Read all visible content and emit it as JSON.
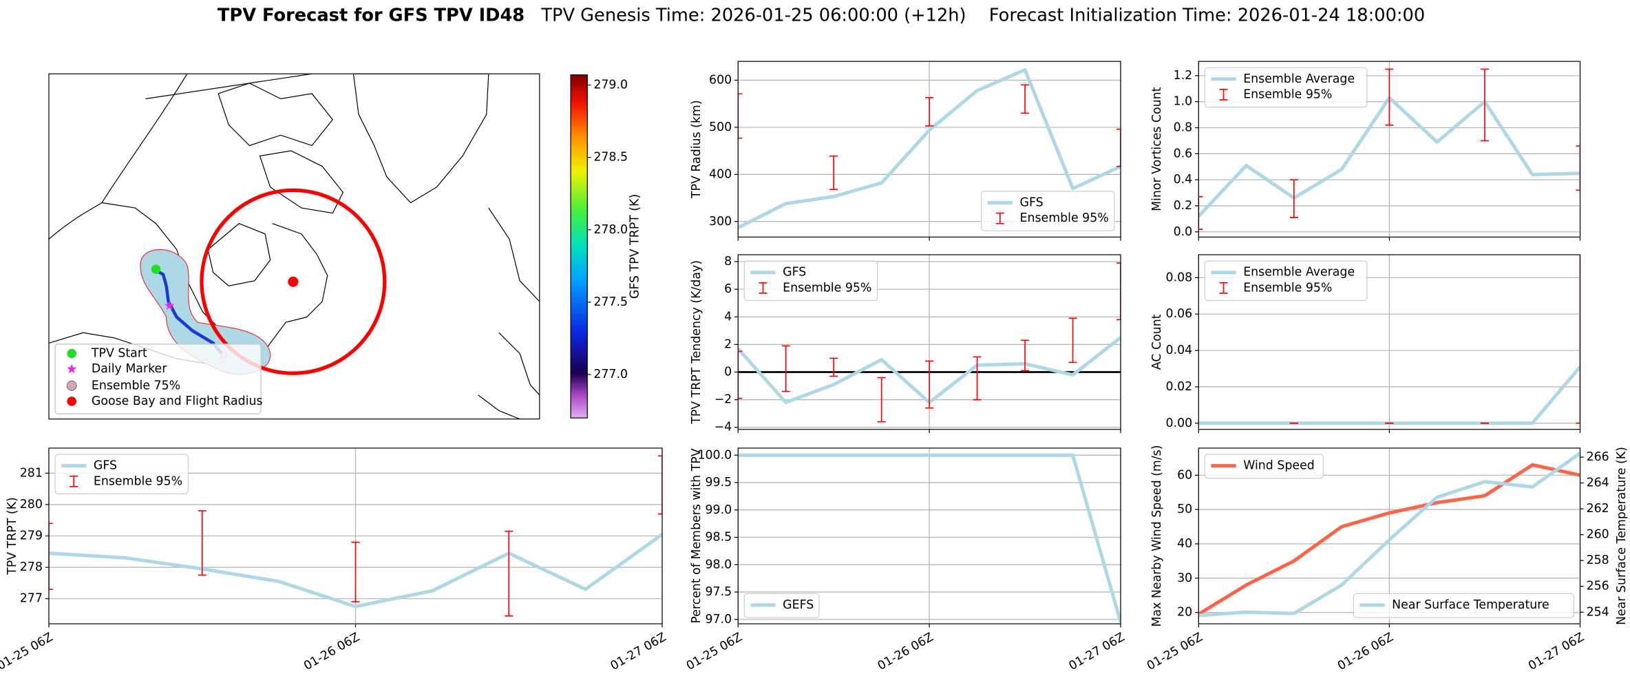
{
  "title": {
    "main": "TPV Forecast for GFS TPV ID48",
    "genesis": "TPV Genesis Time: 2026-01-25 06:00:00 (+12h)",
    "init": "Forecast Initialization Time: 2026-01-24 18:00:00"
  },
  "chart_data": [
    {
      "type": "map",
      "legend": [
        "TPV Start",
        "Daily Marker",
        "Ensemble 75%",
        "Goose Bay and Flight Radius"
      ],
      "colorbar": {
        "label": "GFS TPV TRPT (K)",
        "lim": [
          276.7,
          279.07
        ],
        "ticks": [
          {
            "value": 277,
            "label": "277.0"
          },
          277.5,
          {
            "value": 278,
            "label": "278.0"
          },
          278.5,
          {
            "value": 279,
            "label": "279.0"
          }
        ]
      }
    },
    {
      "type": "line",
      "ylabel": "TPV Radius (km)",
      "ylim": [
        267,
        640
      ],
      "yticks": [
        300,
        400,
        500,
        600
      ],
      "grid": true,
      "legend": "lower right",
      "series": [
        {
          "name": "GFS",
          "color": "#add8e6",
          "values": [
            287,
            338,
            353,
            382,
            494,
            578,
            622,
            370,
            417
          ]
        }
      ],
      "error_bars": {
        "name": "Ensemble 95%",
        "color": "red",
        "low": [
          477,
          null,
          368,
          null,
          503,
          null,
          530,
          null,
          417
        ],
        "high": [
          571,
          null,
          439,
          null,
          563,
          null,
          590,
          null,
          496
        ]
      }
    },
    {
      "type": "line",
      "ylabel": "Minor Vortices Count",
      "ylim": [
        -0.04,
        1.31
      ],
      "yticks": [
        {
          "value": 0,
          "label": "0.0"
        },
        0.2,
        0.4,
        0.6,
        0.8,
        {
          "value": 1,
          "label": "1.0"
        },
        1.2
      ],
      "grid": true,
      "legend": "upper left",
      "series": [
        {
          "name": "Ensemble Average",
          "color": "#add8e6",
          "values": [
            0.12,
            0.51,
            0.26,
            0.48,
            1.03,
            0.69,
            1.0,
            0.44,
            0.45
          ]
        }
      ],
      "error_bars": {
        "name": "Ensemble 95%",
        "color": "red",
        "low": [
          0.02,
          null,
          0.11,
          null,
          0.82,
          null,
          0.7,
          null,
          0.32
        ],
        "high": [
          0.27,
          null,
          0.4,
          null,
          1.25,
          null,
          1.25,
          null,
          0.66
        ]
      }
    },
    {
      "type": "line",
      "ylabel": "TPV TRPT Tendency (K/day)",
      "ylim": [
        -4.15,
        8.5
      ],
      "yticks": [
        {
          "value": -4,
          "label": "−4"
        },
        {
          "value": -2,
          "label": "−2"
        },
        0,
        2,
        4,
        6,
        8
      ],
      "grid": true,
      "legend": "upper left",
      "reference_line": 0,
      "series": [
        {
          "name": "GFS",
          "color": "#add8e6",
          "values": [
            1.7,
            -2.2,
            -0.9,
            0.9,
            -2.2,
            0.5,
            0.6,
            -0.2,
            2.5
          ]
        }
      ],
      "error_bars": {
        "name": "Ensemble 95%",
        "color": "red",
        "low": [
          -1.9,
          -1.4,
          -0.3,
          -3.6,
          -2.6,
          -2.0,
          0.1,
          0.7,
          3.8
        ],
        "high": [
          1.5,
          1.9,
          1.0,
          -0.4,
          0.8,
          1.1,
          2.3,
          3.9,
          7.9
        ]
      }
    },
    {
      "type": "line",
      "ylabel": "AC Count",
      "ylim": [
        -0.0034,
        0.0926
      ],
      "yticks": [
        {
          "value": 0,
          "label": "0.00"
        },
        {
          "value": 0.02,
          "label": "0.02"
        },
        {
          "value": 0.04,
          "label": "0.04"
        },
        {
          "value": 0.06,
          "label": "0.06"
        },
        {
          "value": 0.08,
          "label": "0.08"
        }
      ],
      "grid": true,
      "legend": "upper left",
      "series": [
        {
          "name": "Ensemble Average",
          "color": "#add8e6",
          "values": [
            0,
            0,
            0,
            0,
            0,
            0,
            0,
            0,
            0.031
          ]
        }
      ],
      "error_bars": {
        "name": "Ensemble 95%",
        "color": "red",
        "low": [
          null,
          null,
          0,
          null,
          0,
          null,
          0,
          null,
          0
        ],
        "high": [
          null,
          null,
          0,
          null,
          0,
          null,
          0,
          null,
          0.094
        ]
      }
    },
    {
      "type": "line",
      "ylabel": "TPV TRPT (K)",
      "categories": [
        "01-25 06Z",
        null,
        null,
        null,
        "01-26 06Z",
        null,
        null,
        null,
        "01-27 06Z"
      ],
      "ylim": [
        276.2,
        281.8
      ],
      "yticks": [
        277,
        278,
        279,
        280,
        281
      ],
      "grid": true,
      "legend": "upper left",
      "series": [
        {
          "name": "GFS",
          "color": "#add8e6",
          "values": [
            278.45,
            278.3,
            277.95,
            277.55,
            276.75,
            277.25,
            278.45,
            277.3,
            279.05
          ]
        }
      ],
      "error_bars": {
        "name": "Ensemble 95%",
        "color": "red",
        "low": [
          277.3,
          null,
          277.75,
          null,
          276.9,
          null,
          276.45,
          null,
          279.7
        ],
        "high": [
          279.4,
          null,
          279.8,
          null,
          278.8,
          null,
          279.15,
          null,
          281.55
        ]
      }
    },
    {
      "type": "line",
      "ylabel": "Percent of Members with TPV",
      "categories": [
        "01-25 06Z",
        null,
        null,
        null,
        "01-26 06Z",
        null,
        null,
        null,
        "01-27 06Z"
      ],
      "ylim": [
        96.92,
        100.13
      ],
      "yticks": [
        {
          "value": 97,
          "label": "97.0"
        },
        97.5,
        {
          "value": 98,
          "label": "98.0"
        },
        98.5,
        {
          "value": 99,
          "label": "99.0"
        },
        99.5,
        {
          "value": 100,
          "label": "100.0"
        }
      ],
      "grid": true,
      "legend": "lower left",
      "series": [
        {
          "name": "GEFS",
          "color": "#add8e6",
          "values": [
            100,
            100,
            100,
            100,
            100,
            100,
            100,
            100,
            96.95
          ]
        }
      ]
    },
    {
      "type": "line",
      "ylabel": "Max Nearby Wind Speed (m/s)",
      "ylabel_color": "#ff6347",
      "y2label": "Near Surface Temperature (K)",
      "y2label_color": "#4169e1",
      "categories": [
        "01-25 06Z",
        null,
        null,
        null,
        "01-26 06Z",
        null,
        null,
        null,
        "01-27 06Z"
      ],
      "ylim": [
        16.7,
        67.9
      ],
      "yticks": [
        20,
        30,
        40,
        50,
        60
      ],
      "y2lim": [
        253.1,
        266.7
      ],
      "y2ticks": [
        254,
        256,
        258,
        260,
        262,
        264,
        266
      ],
      "grid": true,
      "legend": "upper left",
      "series": [
        {
          "name": "Wind Speed",
          "color": "#ff6347",
          "values": [
            19.5,
            28,
            35,
            45,
            49,
            52,
            54,
            63,
            60
          ]
        },
        {
          "name": "Near Surface Temperature",
          "color": "#add8e6",
          "axis": "y2",
          "legend": "lower right",
          "values": [
            253.75,
            254,
            253.9,
            256.1,
            259.6,
            262.9,
            264.1,
            263.7,
            266.3
          ]
        }
      ]
    }
  ]
}
